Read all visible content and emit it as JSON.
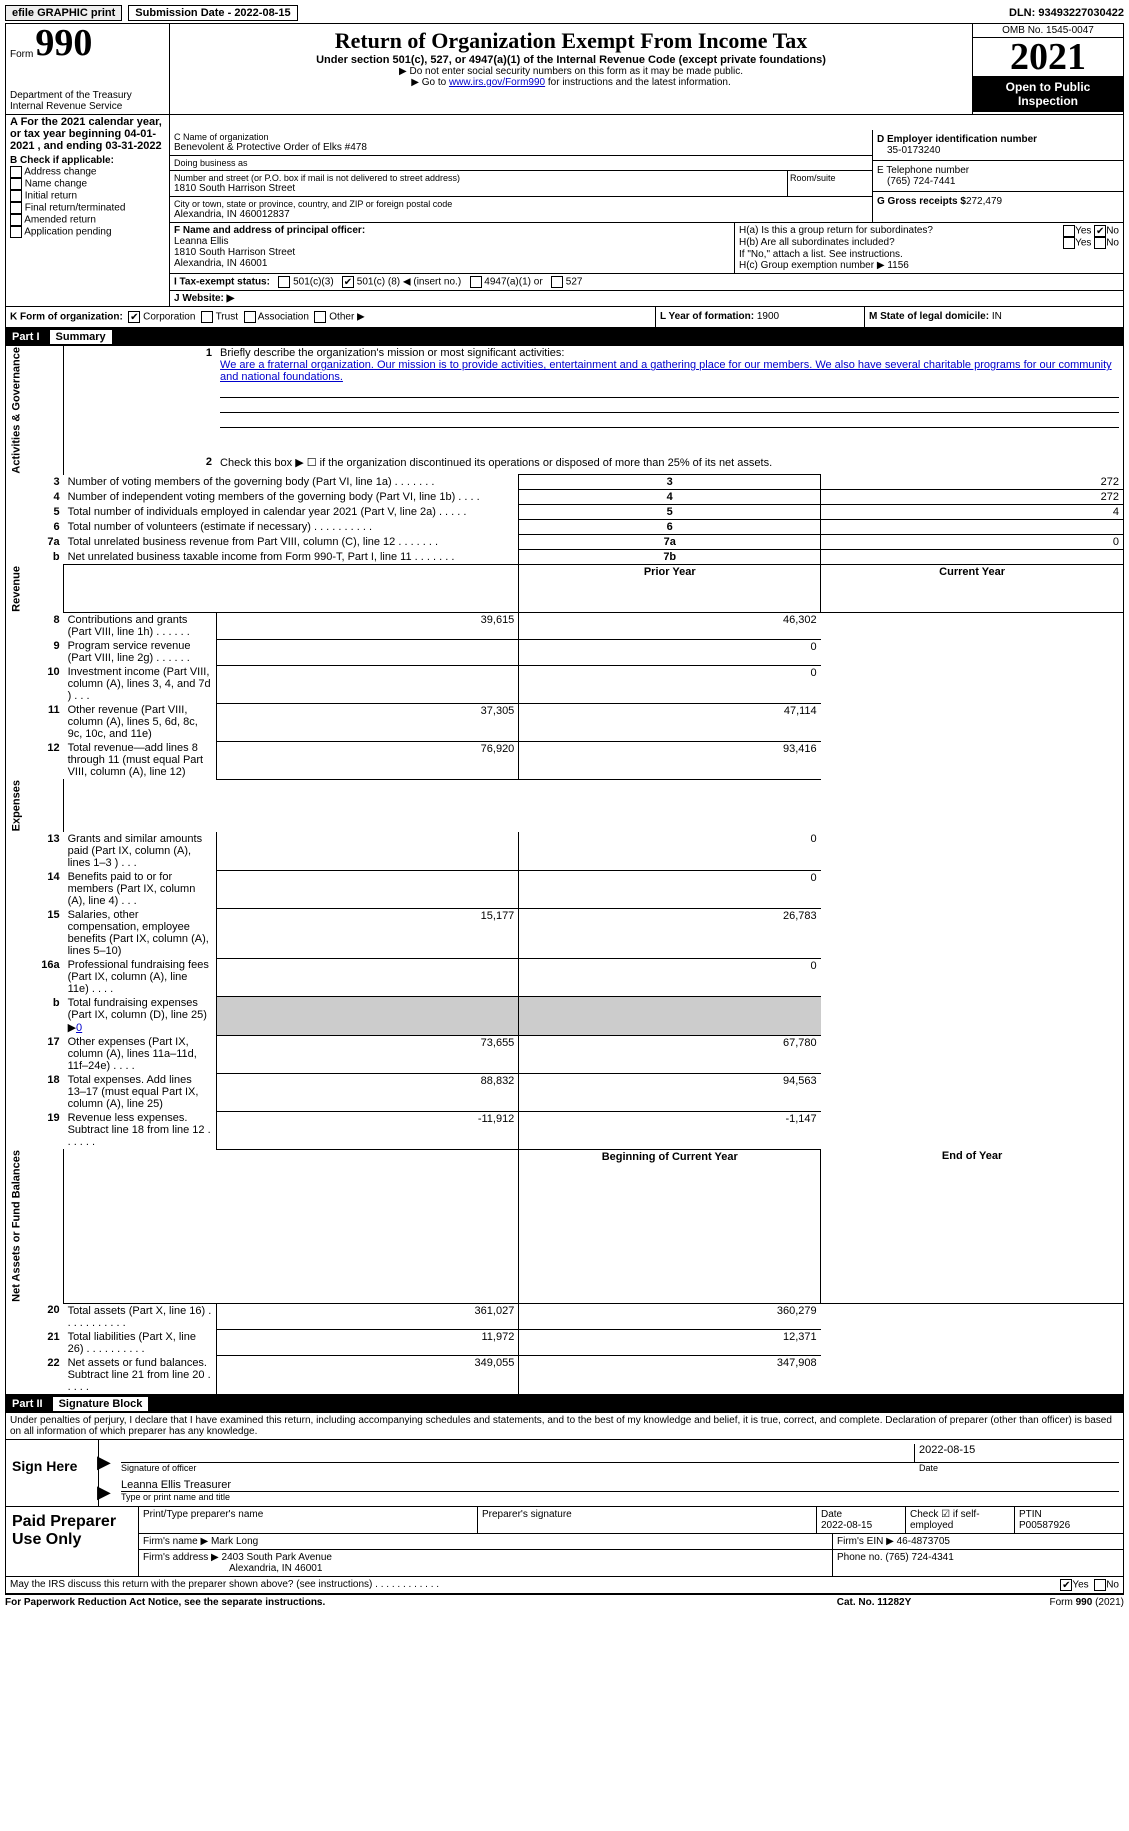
{
  "topbar": {
    "efile_btn": "efile GRAPHIC print",
    "sub_date_label": "Submission Date - 2022-08-15",
    "dln": "DLN: 93493227030422"
  },
  "header": {
    "form_label": "Form",
    "form_number": "990",
    "dept": "Department of the Treasury\nInternal Revenue Service",
    "title": "Return of Organization Exempt From Income Tax",
    "sub1": "Under section 501(c), 527, or 4947(a)(1) of the Internal Revenue Code (except private foundations)",
    "sub2": "▶ Do not enter social security numbers on this form as it may be made public.",
    "sub3_pre": "▶ Go to ",
    "sub3_link": "www.irs.gov/Form990",
    "sub3_post": " for instructions and the latest information.",
    "omb": "OMB No. 1545-0047",
    "year": "2021",
    "open": "Open to Public Inspection"
  },
  "row_a": "A For the 2021 calendar year, or tax year beginning 04-01-2021    , and ending 03-31-2022",
  "block_b": {
    "header": "B Check if applicable:",
    "items": [
      "Address change",
      "Name change",
      "Initial return",
      "Final return/terminated",
      "Amended return",
      "Application pending"
    ]
  },
  "block_c": {
    "name_lbl": "C Name of organization",
    "name": "Benevolent & Protective Order of Elks #478",
    "dba_lbl": "Doing business as",
    "dba": "",
    "street_lbl": "Number and street (or P.O. box if mail is not delivered to street address)",
    "street": "1810 South Harrison Street",
    "room_lbl": "Room/suite",
    "city_lbl": "City or town, state or province, country, and ZIP or foreign postal code",
    "city": "Alexandria, IN  460012837"
  },
  "block_d": {
    "ein_lbl": "D Employer identification number",
    "ein": "35-0173240",
    "phone_lbl": "E Telephone number",
    "phone": "(765) 724-7441",
    "gross_lbl": "G Gross receipts $",
    "gross": "272,479"
  },
  "block_f": {
    "lbl": "F Name and address of principal officer:",
    "name": "Leanna Ellis",
    "street": "1810 South Harrison Street",
    "city": "Alexandria, IN  46001"
  },
  "block_h": {
    "ha_lbl": "H(a)  Is this a group return for subordinates?",
    "hb_lbl": "H(b)  Are all subordinates included?",
    "hb_note": "If \"No,\" attach a list. See instructions.",
    "hc_lbl": "H(c)  Group exemption number ▶",
    "hc_val": "1156",
    "yes": "Yes",
    "no": "No"
  },
  "row_i": {
    "lbl": "I   Tax-exempt status:",
    "opt1": "501(c)(3)",
    "opt2_pre": "501(c) (",
    "opt2_val": "8",
    "opt2_post": ") ◀ (insert no.)",
    "opt3": "4947(a)(1) or",
    "opt4": "527"
  },
  "row_j": {
    "lbl": "J   Website: ▶",
    "val": ""
  },
  "row_k": {
    "lbl": "K Form of organization:",
    "opts": [
      "Corporation",
      "Trust",
      "Association",
      "Other ▶"
    ],
    "checked": 0,
    "l_lbl": "L Year of formation:",
    "l_val": "1900",
    "m_lbl": "M State of legal domicile:",
    "m_val": "IN"
  },
  "part1": {
    "num": "Part I",
    "title": "Summary",
    "q1_lbl": "Briefly describe the organization's mission or most significant activities:",
    "q1_text": "We are a fraternal organization. Our mission is to provide activities, entertainment and a gathering place for our members. We also have several charitable programs for our community and national foundations.",
    "q2": "Check this box ▶ ☐  if the organization discontinued its operations or disposed of more than 25% of its net assets.",
    "lines_gov": [
      {
        "n": "3",
        "t": "Number of voting members of the governing body (Part VI, line 1a)  .    .    .    .    .    .    .",
        "box": "3",
        "v": "272"
      },
      {
        "n": "4",
        "t": "Number of independent voting members of the governing body (Part VI, line 1b)  .    .    .    .",
        "box": "4",
        "v": "272"
      },
      {
        "n": "5",
        "t": "Total number of individuals employed in calendar year 2021 (Part V, line 2a)   .    .    .    .    .",
        "box": "5",
        "v": "4"
      },
      {
        "n": "6",
        "t": "Total number of volunteers (estimate if necessary)    .    .    .    .    .    .    .    .    .    .",
        "box": "6",
        "v": ""
      },
      {
        "n": "7a",
        "t": "Total unrelated business revenue from Part VIII, column (C), line 12   .    .    .    .    .    .    .",
        "box": "7a",
        "v": "0"
      },
      {
        "n": "b",
        "t": "Net unrelated business taxable income from Form 990-T, Part I, line 11  .    .    .    .    .    .    .",
        "box": "7b",
        "v": ""
      }
    ],
    "prior_hdr": "Prior Year",
    "current_hdr": "Current Year",
    "lines_rev": [
      {
        "n": "8",
        "t": "Contributions and grants (Part VIII, line 1h)   .    .    .    .    .    .",
        "p": "39,615",
        "c": "46,302"
      },
      {
        "n": "9",
        "t": "Program service revenue (Part VIII, line 2g)   .    .    .    .    .    .",
        "p": "",
        "c": "0"
      },
      {
        "n": "10",
        "t": "Investment income (Part VIII, column (A), lines 3, 4, and 7d )    .    .    .",
        "p": "",
        "c": "0"
      },
      {
        "n": "11",
        "t": "Other revenue (Part VIII, column (A), lines 5, 6d, 8c, 9c, 10c, and 11e)",
        "p": "37,305",
        "c": "47,114"
      },
      {
        "n": "12",
        "t": "Total revenue—add lines 8 through 11 (must equal Part VIII, column (A), line 12)",
        "p": "76,920",
        "c": "93,416"
      }
    ],
    "lines_exp": [
      {
        "n": "13",
        "t": "Grants and similar amounts paid (Part IX, column (A), lines 1–3 )  .    .    .",
        "p": "",
        "c": "0"
      },
      {
        "n": "14",
        "t": "Benefits paid to or for members (Part IX, column (A), line 4)   .    .    .",
        "p": "",
        "c": "0"
      },
      {
        "n": "15",
        "t": "Salaries, other compensation, employee benefits (Part IX, column (A), lines 5–10)",
        "p": "15,177",
        "c": "26,783"
      },
      {
        "n": "16a",
        "t": "Professional fundraising fees (Part IX, column (A), line 11e)  .    .    .    .",
        "p": "",
        "c": "0"
      },
      {
        "n": "b",
        "t": "Total fundraising expenses (Part IX, column (D), line 25) ▶",
        "b_val": "0",
        "p": "",
        "c": "",
        "shaded": true
      },
      {
        "n": "17",
        "t": "Other expenses (Part IX, column (A), lines 11a–11d, 11f–24e)  .    .    .    .",
        "p": "73,655",
        "c": "67,780"
      },
      {
        "n": "18",
        "t": "Total expenses. Add lines 13–17 (must equal Part IX, column (A), line 25)",
        "p": "88,832",
        "c": "94,563"
      },
      {
        "n": "19",
        "t": "Revenue less expenses. Subtract line 18 from line 12 .    .    .    .    .    .",
        "p": "-11,912",
        "c": "-1,147"
      }
    ],
    "beg_hdr": "Beginning of Current Year",
    "end_hdr": "End of Year",
    "lines_net": [
      {
        "n": "20",
        "t": "Total assets (Part X, line 16) .    .    .    .    .    .    .    .    .    .    .",
        "p": "361,027",
        "c": "360,279"
      },
      {
        "n": "21",
        "t": "Total liabilities (Part X, line 26) .    .    .    .    .    .    .    .    .    .",
        "p": "11,972",
        "c": "12,371"
      },
      {
        "n": "22",
        "t": "Net assets or fund balances. Subtract line 21 from line 20 .    .    .    .    .",
        "p": "349,055",
        "c": "347,908"
      }
    ],
    "vlabels": {
      "gov": "Activities & Governance",
      "rev": "Revenue",
      "exp": "Expenses",
      "net": "Net Assets or Fund Balances"
    }
  },
  "part2": {
    "num": "Part II",
    "title": "Signature Block",
    "perjury": "Under penalties of perjury, I declare that I have examined this return, including accompanying schedules and statements, and to the best of my knowledge and belief, it is true, correct, and complete. Declaration of preparer (other than officer) is based on all information of which preparer has any knowledge.",
    "sign_here": "Sign Here",
    "sig_off_lbl": "Signature of officer",
    "sig_date": "2022-08-15",
    "date_lbl": "Date",
    "sig_name": "Leanna Ellis Treasurer",
    "sig_name_lbl": "Type or print name and title"
  },
  "preparer": {
    "title": "Paid Preparer Use Only",
    "print_lbl": "Print/Type preparer's name",
    "print_val": "",
    "sig_lbl": "Preparer's signature",
    "sig_val": "",
    "date_lbl": "Date",
    "date_val": "2022-08-15",
    "check_lbl": "Check ☑ if self-employed",
    "ptin_lbl": "PTIN",
    "ptin_val": "P00587926",
    "firm_name_lbl": "Firm's name     ▶",
    "firm_name": "Mark Long",
    "firm_ein_lbl": "Firm's EIN ▶",
    "firm_ein": "46-4873705",
    "firm_addr_lbl": "Firm's address ▶",
    "firm_addr1": "2403 South Park Avenue",
    "firm_addr2": "Alexandria, IN  46001",
    "phone_lbl": "Phone no.",
    "phone": "(765) 724-4341"
  },
  "discuss": {
    "q": "May the IRS discuss this return with the preparer shown above? (see instructions)   .    .    .    .    .    .    .    .    .    .    .    .",
    "yes": "Yes",
    "no": "No"
  },
  "footer": {
    "left": "For Paperwork Reduction Act Notice, see the separate instructions.",
    "mid": "Cat. No. 11282Y",
    "right": "Form 990 (2021)"
  }
}
